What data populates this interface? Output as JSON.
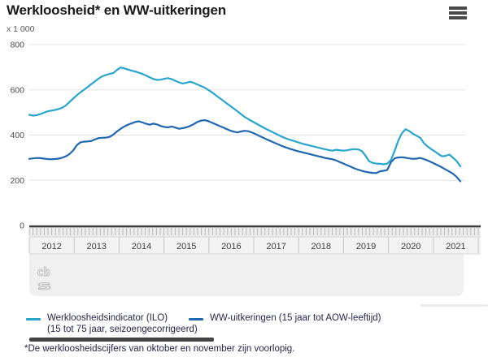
{
  "header": {
    "title": "Werkloosheid* en WW-uitkeringen",
    "menu_icon": "hamburger-icon"
  },
  "chart_data": {
    "type": "line",
    "unit_label": "x 1 000",
    "ylim": [
      0,
      800
    ],
    "y_ticks": [
      0,
      200,
      400,
      600,
      800
    ],
    "grid": true,
    "x_years": [
      "2012",
      "2013",
      "2014",
      "2015",
      "2016",
      "2017",
      "2018",
      "2019",
      "2020",
      "2021"
    ],
    "x_frequency": "monthly",
    "series": [
      {
        "name": "Werkloosheidsindicator (ILO) (15 tot 75 jaar, seizoengecorrigeerd)",
        "color": "#28a5cd",
        "values": [
          490,
          486,
          488,
          493,
          499,
          505,
          508,
          511,
          515,
          521,
          531,
          546,
          561,
          576,
          589,
          601,
          613,
          626,
          638,
          650,
          660,
          666,
          671,
          674,
          688,
          699,
          695,
          690,
          685,
          681,
          676,
          670,
          663,
          655,
          648,
          644,
          645,
          649,
          652,
          647,
          640,
          633,
          628,
          631,
          636,
          631,
          624,
          617,
          610,
          600,
          589,
          577,
          565,
          553,
          541,
          529,
          517,
          505,
          492,
          480,
          470,
          461,
          452,
          443,
          434,
          426,
          418,
          410,
          402,
          394,
          387,
          381,
          376,
          371,
          366,
          361,
          357,
          353,
          349,
          345,
          341,
          337,
          334,
          331,
          335,
          333,
          331,
          333,
          336,
          338,
          337,
          330,
          310,
          285,
          277,
          274,
          273,
          271,
          274,
          290,
          330,
          375,
          408,
          426,
          418,
          406,
          397,
          388,
          365,
          350,
          338,
          328,
          316,
          306,
          308,
          314,
          300,
          285,
          262
        ]
      },
      {
        "name": "WW-uitkeringen (15 jaar tot AOW-leeftijd)",
        "color": "#2066b1",
        "values": [
          295,
          297,
          299,
          298,
          296,
          294,
          293,
          294,
          296,
          300,
          306,
          316,
          332,
          355,
          368,
          371,
          372,
          374,
          381,
          387,
          388,
          389,
          392,
          402,
          416,
          428,
          438,
          446,
          452,
          458,
          461,
          456,
          450,
          446,
          451,
          447,
          440,
          436,
          434,
          438,
          433,
          428,
          431,
          434,
          440,
          448,
          458,
          464,
          466,
          462,
          455,
          448,
          441,
          434,
          427,
          420,
          415,
          412,
          416,
          419,
          417,
          411,
          404,
          396,
          389,
          381,
          374,
          367,
          360,
          353,
          347,
          341,
          336,
          331,
          327,
          323,
          319,
          315,
          311,
          307,
          303,
          299,
          296,
          293,
          288,
          281,
          274,
          267,
          260,
          253,
          247,
          242,
          238,
          235,
          233,
          232,
          240,
          242,
          246,
          280,
          297,
          301,
          302,
          300,
          297,
          295,
          296,
          299,
          294,
          288,
          281,
          273,
          265,
          257,
          248,
          239,
          229,
          215,
          196
        ]
      }
    ]
  },
  "legend": {
    "items": [
      {
        "label_line1": "Werkloosheidsindicator (ILO)",
        "label_line2": "(15 tot 75 jaar, seizoengecorrigeerd)",
        "color": "#28a5cd"
      },
      {
        "label_line1": "WW-uitkeringen (15 jaar tot AOW-leeftijd)",
        "label_line2": "",
        "color": "#2066b1"
      }
    ]
  },
  "footnote": "*De werkloosheidscijfers van oktober en november zijn voorlopig.",
  "watermark": "cbs-logo",
  "colors": {
    "grid": "#e3e3e3",
    "baseline": "#3d3d3d",
    "axis_text": "#4c4c4c",
    "ruler_bg": "#ededed",
    "year_row_bg": "#f3f3f3",
    "panel_bg": "#f0f0f0",
    "tick": "#b6b6b6",
    "separator": "#c5c5c5",
    "year_text": "#3e3e3e",
    "logo": "#c2c2c2"
  }
}
